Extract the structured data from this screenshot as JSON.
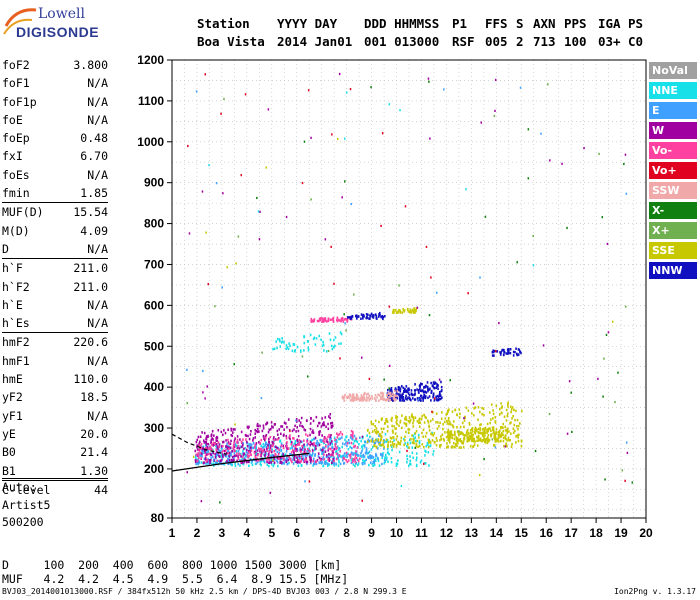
{
  "logo": {
    "line1": "Lowell",
    "line2": "DIGISONDE"
  },
  "header": {
    "labels": [
      "Station",
      "YYYY DAY",
      "DDD HHMMSS",
      "P1",
      "FFS",
      "S",
      "AXN",
      "PPS",
      "IGA",
      "PS"
    ],
    "values": [
      "Boa Vista",
      "2014 Jan01",
      "001 013000",
      "RSF",
      "005",
      "2",
      "713",
      "100",
      "03+",
      "C0"
    ]
  },
  "params": [
    {
      "name": "foF2",
      "value": "3.800"
    },
    {
      "name": "foF1",
      "value": "N/A"
    },
    {
      "name": "foF1p",
      "value": "N/A"
    },
    {
      "name": "foE",
      "value": "N/A"
    },
    {
      "name": "foEp",
      "value": "0.48"
    },
    {
      "name": "fxI",
      "value": "6.70"
    },
    {
      "name": "foEs",
      "value": "N/A"
    },
    {
      "name": "fmin",
      "value": "1.85"
    },
    {
      "name": "MUF(D)",
      "value": "15.54",
      "sep": true
    },
    {
      "name": "M(D)",
      "value": "4.09"
    },
    {
      "name": "D",
      "value": "N/A"
    },
    {
      "name": "h`F",
      "value": "211.0",
      "sep": true
    },
    {
      "name": "h`F2",
      "value": "211.0"
    },
    {
      "name": "h`E",
      "value": "N/A"
    },
    {
      "name": "h`Es",
      "value": "N/A"
    },
    {
      "name": "hmF2",
      "value": "220.6",
      "sep": true
    },
    {
      "name": "hmF1",
      "value": "N/A"
    },
    {
      "name": "hmE",
      "value": "110.0"
    },
    {
      "name": "yF2",
      "value": "18.5"
    },
    {
      "name": "yF1",
      "value": "N/A"
    },
    {
      "name": "yE",
      "value": "20.0"
    },
    {
      "name": "B0",
      "value": "21.4"
    },
    {
      "name": "B1",
      "value": "1.30"
    },
    {
      "name": "C-level",
      "value": "44",
      "sep": true
    }
  ],
  "auto": {
    "label": "Auto:",
    "artist": "Artist5",
    "version": "500200"
  },
  "legend": [
    {
      "label": "NoVal",
      "color": "#a0a0a0"
    },
    {
      "label": "NNE",
      "color": "#18e0e8"
    },
    {
      "label": "E",
      "color": "#40a0ff"
    },
    {
      "label": "W",
      "color": "#a000a0"
    },
    {
      "label": "Vo-",
      "color": "#ff40a0"
    },
    {
      "label": "Vo+",
      "color": "#e00020"
    },
    {
      "label": "SSW",
      "color": "#f0a8a8"
    },
    {
      "label": "X-",
      "color": "#108010"
    },
    {
      "label": "X+",
      "color": "#70b050"
    },
    {
      "label": "SSE",
      "color": "#c8c800"
    },
    {
      "label": "NNW",
      "color": "#1010c0"
    }
  ],
  "bottom": {
    "d_row": "D     100  200  400  600  800 1000 1500 3000 [km]",
    "muf_row": "MUF   4.2  4.2  4.5  4.9  5.5  6.4  8.9 15.5 [MHz]"
  },
  "footer": {
    "left": "BVJ03_2014001013000.RSF / 384fx512h 50 kHz 2.5 km / DPS-4D BVJ03 003 / 2.8 N 299.3 E",
    "right": "Ion2Png v. 1.3.17"
  },
  "chart_data": {
    "type": "scatter",
    "xlim": [
      1,
      20
    ],
    "ylim": [
      80,
      1200
    ],
    "xticks": [
      1,
      2,
      3,
      4,
      5,
      6,
      7,
      8,
      9,
      10,
      11,
      12,
      13,
      14,
      15,
      16,
      17,
      18,
      19,
      20
    ],
    "yticks": [
      80,
      200,
      300,
      400,
      500,
      600,
      700,
      800,
      900,
      1000,
      1100,
      1200
    ],
    "grid": true,
    "profile_line": [
      [
        1,
        195
      ],
      [
        3,
        213
      ],
      [
        5,
        228
      ],
      [
        6.5,
        238
      ]
    ],
    "profile_dashed": [
      [
        1,
        285
      ],
      [
        1.6,
        265
      ],
      [
        2.4,
        246
      ],
      [
        3.2,
        236
      ]
    ],
    "clusters": [
      {
        "legend": "NNE",
        "x0": 1.9,
        "x1": 11.5,
        "y0": 210,
        "y1": 295,
        "n": 380
      },
      {
        "legend": "E",
        "x0": 1.9,
        "x1": 9.5,
        "y0": 215,
        "y1": 290,
        "n": 420
      },
      {
        "legend": "W",
        "x0": 1.9,
        "x1": 7.5,
        "y0": 218,
        "y1": 340,
        "n": 420
      },
      {
        "legend": "Vo-",
        "x0": 1.9,
        "x1": 8.5,
        "y0": 220,
        "y1": 300,
        "n": 220
      },
      {
        "legend": "SSE",
        "x0": 8.8,
        "x1": 15.0,
        "y0": 255,
        "y1": 370,
        "n": 420
      },
      {
        "legend": "NNW",
        "x0": 9.6,
        "x1": 11.8,
        "y0": 370,
        "y1": 420,
        "n": 220
      },
      {
        "legend": "SSW",
        "x0": 7.8,
        "x1": 10.0,
        "y0": 370,
        "y1": 395,
        "n": 120
      },
      {
        "legend": "Vo-",
        "x0": 6.5,
        "x1": 8.2,
        "y0": 563,
        "y1": 575,
        "n": 60
      },
      {
        "legend": "NNW",
        "x0": 8.0,
        "x1": 9.5,
        "y0": 570,
        "y1": 585,
        "n": 50
      },
      {
        "legend": "SSE",
        "x0": 9.8,
        "x1": 10.8,
        "y0": 585,
        "y1": 597,
        "n": 40
      },
      {
        "legend": "NNE",
        "x0": 5.0,
        "x1": 7.8,
        "y0": 490,
        "y1": 540,
        "n": 60
      },
      {
        "legend": "NNW",
        "x0": 13.8,
        "x1": 15.0,
        "y0": 480,
        "y1": 500,
        "n": 40
      },
      {
        "legend": "SSE",
        "x0": 12.0,
        "x1": 14.5,
        "y0": 270,
        "y1": 310,
        "n": 180
      }
    ],
    "sparse": [
      {
        "legend": "W",
        "n": 45
      },
      {
        "legend": "X-",
        "n": 30
      },
      {
        "legend": "X+",
        "n": 22
      },
      {
        "legend": "Vo+",
        "n": 30
      },
      {
        "legend": "E",
        "n": 20
      },
      {
        "legend": "SSE",
        "n": 10
      },
      {
        "legend": "NNE",
        "n": 10
      }
    ]
  }
}
